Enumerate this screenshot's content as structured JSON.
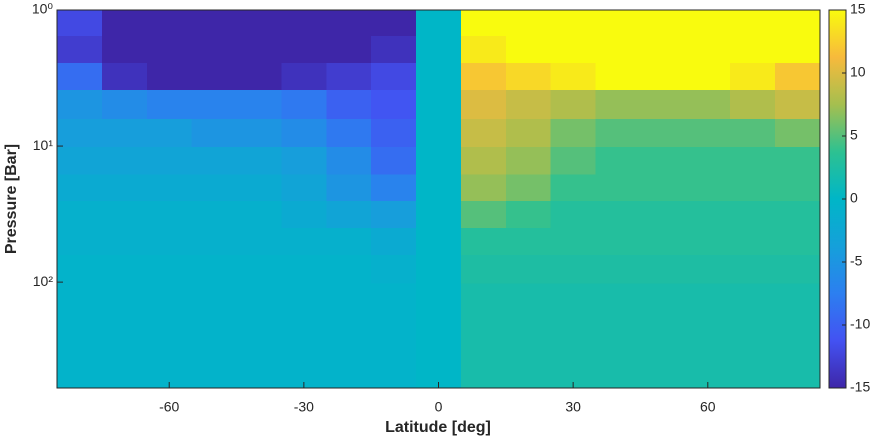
{
  "chart_data": {
    "type": "heatmap",
    "xlabel": "Latitude [deg]",
    "ylabel": "Pressure [Bar]",
    "xlim": [
      -85,
      85
    ],
    "ylim": [
      1,
      600
    ],
    "ylog": true,
    "yreversed": true,
    "xticks": [
      -60,
      -30,
      0,
      30,
      60
    ],
    "yticks": [
      {
        "value": 1,
        "label": "10⁰"
      },
      {
        "value": 10,
        "label": "10¹"
      },
      {
        "value": 100,
        "label": "10²"
      }
    ],
    "x": [
      -80,
      -70,
      -60,
      -50,
      -40,
      -30,
      -20,
      -10,
      0,
      10,
      20,
      30,
      40,
      50,
      60,
      70,
      80
    ],
    "y": [
      1.2,
      2,
      3,
      5,
      8,
      13,
      20,
      32,
      50,
      80,
      130,
      200,
      320,
      500
    ],
    "z": [
      [
        -12,
        -15,
        -15,
        -15,
        -15,
        -15,
        -15,
        -15,
        0,
        15,
        15,
        15,
        15,
        15,
        15,
        15,
        15
      ],
      [
        -13,
        -15,
        -15,
        -15,
        -15,
        -15,
        -15,
        -14,
        0,
        14,
        15,
        15,
        15,
        15,
        15,
        15,
        15
      ],
      [
        -9,
        -14,
        -15,
        -15,
        -15,
        -14,
        -13,
        -12,
        0,
        12,
        13,
        14,
        15,
        15,
        15,
        14,
        12
      ],
      [
        -5,
        -6,
        -7,
        -7,
        -7,
        -8,
        -10,
        -11,
        0,
        10,
        9,
        8,
        7,
        7,
        7,
        8,
        9
      ],
      [
        -4,
        -4,
        -4,
        -5,
        -5,
        -6,
        -8,
        -10,
        0,
        9,
        8,
        6,
        5,
        5,
        5,
        5,
        6
      ],
      [
        -3,
        -3,
        -3,
        -3,
        -3,
        -4,
        -6,
        -9,
        0,
        8,
        7,
        5,
        4,
        4,
        4,
        4,
        4
      ],
      [
        -2,
        -2,
        -2,
        -2,
        -2,
        -3,
        -5,
        -7,
        0,
        7,
        6,
        4,
        4,
        4,
        4,
        4,
        4
      ],
      [
        -1,
        -1,
        -1,
        -1,
        -1,
        -2,
        -3,
        -4,
        0,
        5,
        4,
        3,
        3,
        3,
        3,
        3,
        3
      ],
      [
        -1,
        -1,
        -1,
        -1,
        -1,
        -1,
        -1,
        -2,
        0,
        3,
        3,
        3,
        3,
        3,
        3,
        3,
        3
      ],
      [
        -0.5,
        -0.5,
        -0.5,
        -0.5,
        -0.5,
        -0.5,
        -0.5,
        -1,
        0,
        2.5,
        2.5,
        2.5,
        2.5,
        2.5,
        2.5,
        2.5,
        2.5
      ],
      [
        -0.5,
        -0.5,
        -0.5,
        -0.5,
        -0.5,
        -0.5,
        -0.5,
        -0.5,
        0,
        2,
        2,
        2,
        2,
        2,
        2,
        2,
        2
      ],
      [
        -0.5,
        -0.5,
        -0.5,
        -0.5,
        -0.5,
        -0.5,
        -0.5,
        -0.5,
        0,
        2,
        2,
        2,
        2,
        2,
        2,
        2,
        2
      ],
      [
        -0.5,
        -0.5,
        -0.5,
        -0.5,
        -0.5,
        -0.5,
        -0.5,
        -0.5,
        0,
        2,
        2,
        2,
        2,
        2,
        2,
        2,
        2
      ],
      [
        -0.5,
        -0.5,
        -0.5,
        -0.5,
        -0.5,
        -0.5,
        -0.5,
        -0.5,
        0,
        2,
        2,
        2,
        2,
        2,
        2,
        2,
        2
      ]
    ],
    "clim": [
      -15,
      15
    ],
    "colorbar_ticks": [
      -15,
      -10,
      -5,
      0,
      5,
      10,
      15
    ],
    "colormap": [
      "#3e26a8",
      "#4352f2",
      "#2c7ff0",
      "#15a0da",
      "#00b6c7",
      "#2dc191",
      "#a5bf4f",
      "#f7ba3c",
      "#f9fb0e"
    ]
  }
}
